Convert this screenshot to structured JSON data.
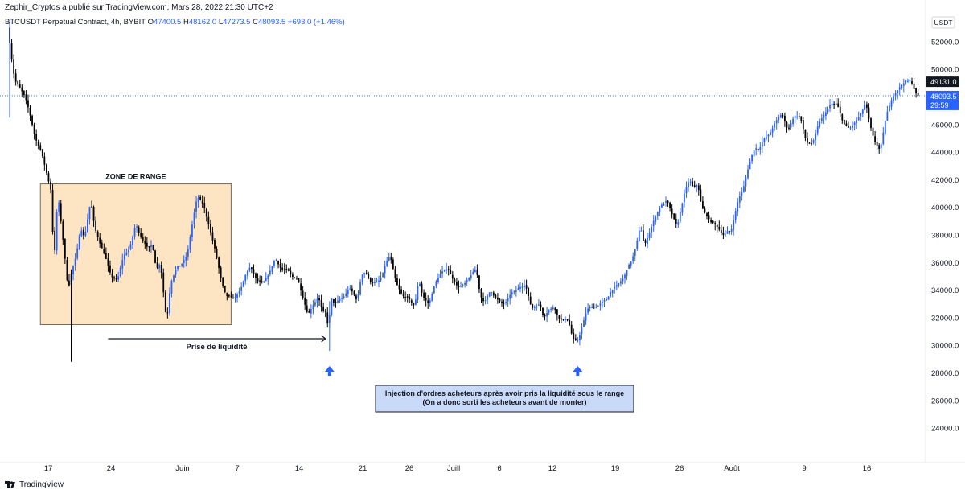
{
  "header": {
    "publisher": "Zephir_Cryptos a publié sur TradingView.com, Mars 28, 2022 21:30 UTC+2",
    "symbol": "BTCUSDT Perpetual Contract, 4h, BYBIT",
    "o_label": "O",
    "o_value": "47400.5",
    "h_label": "H",
    "h_value": "48162.0",
    "l_label": "L",
    "l_value": "47273.5",
    "c_label": "C",
    "c_value": "48093.5",
    "change": "+693.0 (+1.46%)"
  },
  "footer": {
    "brand": "TradingView",
    "brand_icon": "tradingview-logo-icon"
  },
  "colors": {
    "up": "#2962ff",
    "down": "#000000",
    "range_fill": "#fde5c3",
    "price_line": "#2962ff",
    "annotation_fill": "#c9d9f8"
  },
  "chart_data": {
    "type": "candlestick",
    "title": "BTCUSDT Perpetual Contract, 4h, BYBIT",
    "currency_label": "USDT",
    "y_ticks": [
      "52000.0",
      "50000.0",
      "48000.0",
      "46000.0",
      "44000.0",
      "42000.0",
      "40000.0",
      "38000.0",
      "36000.0",
      "34000.0",
      "32000.0",
      "30000.0",
      "28000.0",
      "26000.0",
      "24000.0"
    ],
    "ylim": [
      23000,
      53500
    ],
    "x_ticks": [
      "17",
      "24",
      "Juin",
      "7",
      "14",
      "21",
      "26",
      "Juill",
      "6",
      "12",
      "19",
      "26",
      "Août",
      "9",
      "16"
    ],
    "grid": false,
    "price_badges": {
      "high": "49131.0",
      "last": "48093.5",
      "countdown": "29:59"
    },
    "path_points": [
      [
        0,
        52500
      ],
      [
        2,
        50200
      ],
      [
        3,
        49200
      ],
      [
        5,
        48800
      ],
      [
        8,
        48000
      ],
      [
        10,
        47000
      ],
      [
        13,
        45000
      ],
      [
        16,
        44000
      ],
      [
        19,
        42200
      ],
      [
        21,
        41000
      ],
      [
        22,
        35500
      ],
      [
        24,
        41000
      ],
      [
        27,
        37000
      ],
      [
        29,
        34000
      ],
      [
        31,
        35500
      ],
      [
        33,
        36500
      ],
      [
        35,
        38500
      ],
      [
        37,
        37800
      ],
      [
        40,
        40500
      ],
      [
        42,
        38500
      ],
      [
        45,
        37200
      ],
      [
        47,
        36500
      ],
      [
        50,
        35000
      ],
      [
        53,
        34700
      ],
      [
        56,
        36500
      ],
      [
        59,
        37000
      ],
      [
        62,
        38800
      ],
      [
        64,
        38000
      ],
      [
        68,
        37000
      ],
      [
        70,
        37400
      ],
      [
        72,
        35500
      ],
      [
        74,
        36000
      ],
      [
        77,
        31700
      ],
      [
        79,
        34500
      ],
      [
        82,
        35700
      ],
      [
        84,
        35800
      ],
      [
        87,
        36500
      ],
      [
        90,
        39200
      ],
      [
        92,
        40800
      ],
      [
        95,
        40200
      ],
      [
        98,
        38500
      ],
      [
        101,
        36700
      ],
      [
        104,
        34500
      ],
      [
        106,
        33600
      ],
      [
        110,
        33400
      ],
      [
        113,
        34000
      ],
      [
        116,
        35300
      ],
      [
        118,
        35700
      ],
      [
        121,
        34700
      ],
      [
        124,
        34500
      ],
      [
        127,
        35200
      ],
      [
        130,
        36300
      ],
      [
        133,
        35500
      ],
      [
        136,
        35500
      ],
      [
        138,
        35000
      ],
      [
        141,
        34800
      ],
      [
        144,
        33200
      ],
      [
        146,
        32200
      ],
      [
        148,
        32800
      ],
      [
        151,
        33500
      ],
      [
        153,
        32500
      ],
      [
        155,
        32400
      ],
      [
        156,
        30800
      ],
      [
        157,
        33500
      ],
      [
        159,
        33000
      ],
      [
        161,
        33300
      ],
      [
        164,
        33600
      ],
      [
        166,
        34200
      ],
      [
        168,
        33800
      ],
      [
        170,
        33200
      ],
      [
        172,
        35100
      ],
      [
        174,
        35300
      ],
      [
        177,
        34500
      ],
      [
        180,
        34600
      ],
      [
        182,
        35000
      ],
      [
        184,
        36000
      ],
      [
        186,
        36500
      ],
      [
        189,
        34500
      ],
      [
        192,
        33600
      ],
      [
        195,
        33400
      ],
      [
        198,
        32800
      ],
      [
        200,
        34800
      ],
      [
        202,
        33500
      ],
      [
        205,
        33000
      ],
      [
        208,
        34500
      ],
      [
        211,
        35300
      ],
      [
        214,
        35600
      ],
      [
        217,
        34700
      ],
      [
        219,
        34200
      ],
      [
        222,
        34400
      ],
      [
        225,
        35000
      ],
      [
        228,
        35600
      ],
      [
        230,
        33600
      ],
      [
        232,
        33100
      ],
      [
        235,
        34000
      ],
      [
        237,
        33500
      ],
      [
        240,
        33100
      ],
      [
        242,
        33000
      ],
      [
        245,
        33800
      ],
      [
        247,
        33900
      ],
      [
        249,
        34200
      ],
      [
        252,
        34400
      ],
      [
        255,
        32700
      ],
      [
        257,
        32800
      ],
      [
        259,
        33000
      ],
      [
        261,
        32000
      ],
      [
        263,
        32500
      ],
      [
        266,
        32800
      ],
      [
        268,
        32000
      ],
      [
        270,
        31800
      ],
      [
        272,
        32000
      ],
      [
        274,
        31300
      ],
      [
        275,
        30400
      ],
      [
        276,
        30500
      ],
      [
        277,
        30200
      ],
      [
        279,
        31000
      ],
      [
        282,
        32600
      ],
      [
        284,
        32800
      ],
      [
        287,
        32800
      ],
      [
        290,
        33200
      ],
      [
        292,
        33400
      ],
      [
        294,
        34000
      ],
      [
        297,
        34400
      ],
      [
        300,
        34900
      ],
      [
        302,
        35700
      ],
      [
        304,
        36200
      ],
      [
        306,
        37200
      ],
      [
        308,
        38700
      ],
      [
        310,
        37200
      ],
      [
        312,
        38000
      ],
      [
        315,
        39200
      ],
      [
        318,
        40100
      ],
      [
        321,
        40500
      ],
      [
        324,
        39300
      ],
      [
        326,
        38600
      ],
      [
        328,
        40000
      ],
      [
        330,
        41300
      ],
      [
        332,
        42000
      ],
      [
        334,
        41400
      ],
      [
        336,
        41700
      ],
      [
        338,
        40000
      ],
      [
        340,
        39500
      ],
      [
        342,
        39000
      ],
      [
        345,
        38700
      ],
      [
        347,
        38300
      ],
      [
        349,
        37900
      ],
      [
        351,
        38400
      ],
      [
        352,
        38100
      ],
      [
        354,
        39400
      ],
      [
        356,
        40700
      ],
      [
        358,
        41200
      ],
      [
        360,
        42500
      ],
      [
        362,
        43600
      ],
      [
        364,
        44300
      ],
      [
        366,
        44200
      ],
      [
        368,
        44900
      ],
      [
        371,
        45300
      ],
      [
        374,
        46200
      ],
      [
        377,
        46800
      ],
      [
        380,
        45600
      ],
      [
        383,
        46600
      ],
      [
        386,
        46600
      ],
      [
        389,
        44700
      ],
      [
        392,
        44600
      ],
      [
        395,
        46100
      ],
      [
        398,
        46800
      ],
      [
        401,
        47500
      ],
      [
        404,
        47500
      ],
      [
        407,
        46100
      ],
      [
        410,
        45700
      ],
      [
        413,
        46200
      ],
      [
        416,
        46900
      ],
      [
        418,
        47600
      ],
      [
        420,
        46000
      ],
      [
        422,
        44900
      ],
      [
        425,
        44100
      ],
      [
        428,
        46700
      ],
      [
        431,
        48000
      ],
      [
        434,
        48600
      ],
      [
        437,
        49100
      ],
      [
        440,
        49200
      ],
      [
        441,
        48800
      ],
      [
        443,
        48093
      ]
    ],
    "range_box": {
      "label": "ZONE DE RANGE",
      "from_index": 15,
      "to_index": 108,
      "low": 31500,
      "high": 41700
    },
    "annotations": {
      "liquidity_label": "Prise de liquidité",
      "injection_line1": "Injection d'ordres acheteurs après avoir pris la liquidité sous le range",
      "injection_line2": "(On a donc sorti les acheteurs avant de monter)"
    }
  }
}
